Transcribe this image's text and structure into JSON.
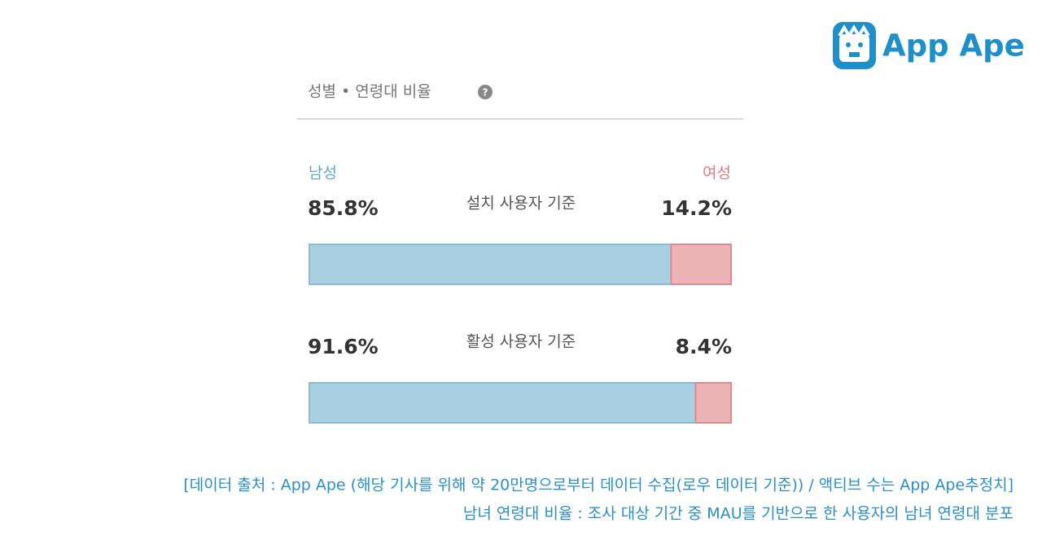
{
  "logo": "App Ape",
  "chart_data": {
    "type": "stacked-bar",
    "title": "성별 • 연령대 비율",
    "categories": [
      "설치 사용자 기준",
      "활성 사용자 기준"
    ],
    "series": [
      {
        "name": "남성",
        "color": "#a9d0e2",
        "values": [
          85.8,
          91.6
        ],
        "value_labels": [
          "85.8%",
          "91.6%"
        ]
      },
      {
        "name": "여성",
        "color": "#ecb4b6",
        "values": [
          14.2,
          8.4
        ],
        "value_labels": [
          "14.2%",
          "8.4%"
        ]
      }
    ],
    "xlim": [
      0,
      100
    ]
  },
  "footnotes": [
    "[데이터 출처 : App Ape (해당 기사를 위해 약 20만명으로부터 데이터 수집(로우 데이터 기준)) / 액티브 수는 App Ape추정치]",
    "남녀 연령대 비율 : 조사 대상 기간 중 MAU를 기반으로 한 사용자의 남녀 연령대 분포"
  ]
}
